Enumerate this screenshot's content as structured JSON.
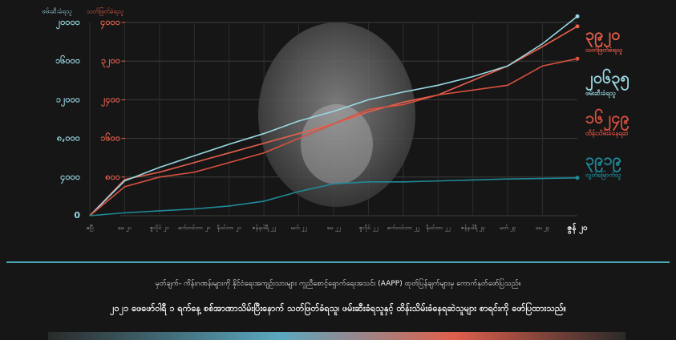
{
  "chart_data": {
    "type": "line",
    "ylabel": "ဖမ်းဆီးခံရသူ",
    "y2label": "သတ်ဖြတ်ခံရသူ",
    "categories": [
      "ဧပြီ",
      "မေ ၂၁",
      "ဇူလိုင် ၂၁",
      "စက်တင်ဘာ ၂၁",
      "နိုဝင်ဘာ ၂၁",
      "ဇန်နဝါရီ ၂၂",
      "မတ် ၂၂",
      "မေ ၂၂",
      "ဇူလိုင် ၂၂",
      "စက်တင်ဘာ ၂၂",
      "နိုဝင်ဘာ ၂၂",
      "ဇန်နဝါရီ ၂၃",
      "မတ် ၂၃",
      "မေ ၂၃",
      "ဇွန် ၂၀"
    ],
    "ylim": [
      0,
      20000
    ],
    "yticks": [
      {
        "value": 0,
        "label": "0"
      },
      {
        "value": 4000,
        "label": "၄၀၀၀"
      },
      {
        "value": 8000,
        "label": "၈,၀၀၀"
      },
      {
        "value": 12000,
        "label": "၁၂၀၀၀"
      },
      {
        "value": 16000,
        "label": "၁၆၀၀၀"
      },
      {
        "value": 20000,
        "label": "၂၀၀၀၀"
      }
    ],
    "y2lim": [
      0,
      4000
    ],
    "y2ticks": [
      {
        "value": 800,
        "label": "၈၀၀"
      },
      {
        "value": 1600,
        "label": "၁၆၀၀"
      },
      {
        "value": 2400,
        "label": "၂၄၀၀"
      },
      {
        "value": 3200,
        "label": "၃၂၀၀"
      },
      {
        "value": 4000,
        "label": "၄၀၀၀"
      }
    ],
    "grid": true,
    "series": [
      {
        "name": "သတ်ဖြတ်ခံရသူ",
        "color": "#e8604c",
        "axis": "y2",
        "values": [
          0,
          750,
          900,
          1100,
          1300,
          1500,
          1700,
          1900,
          2150,
          2350,
          2500,
          2800,
          3100,
          3500,
          3920
        ],
        "value_labels": [
          null,
          null,
          null,
          null,
          null,
          null,
          null,
          null,
          null,
          null,
          null,
          null,
          null,
          null,
          "၃၉၂၀"
        ]
      },
      {
        "name": "ဖမ်းဆီးခံရသူ",
        "color": "#9ad8e4",
        "values": [
          0,
          3600,
          5000,
          6200,
          7400,
          8500,
          9800,
          10800,
          12000,
          12800,
          13500,
          14400,
          15500,
          17800,
          20635
        ],
        "value_labels": [
          null,
          null,
          null,
          null,
          null,
          null,
          null,
          null,
          null,
          null,
          null,
          null,
          null,
          null,
          "၂၀၆၃၅"
        ]
      },
      {
        "name": "ထိန်းသိမ်းခံနေရဆဲ",
        "color": "#d9503f",
        "values": [
          0,
          3000,
          4000,
          4500,
          5500,
          6500,
          8000,
          9500,
          11000,
          11500,
          12500,
          13000,
          13500,
          15500,
          16249
        ],
        "value_labels": [
          null,
          null,
          null,
          null,
          null,
          null,
          null,
          null,
          null,
          null,
          null,
          null,
          null,
          null,
          "၁၆၂၄၉"
        ]
      },
      {
        "name": "လွတ်မြောက်သူ",
        "color": "#1f8a99",
        "values": [
          0,
          300,
          500,
          700,
          1000,
          1500,
          2500,
          3300,
          3500,
          3500,
          3600,
          3700,
          3800,
          3850,
          3919
        ],
        "value_labels": [
          null,
          null,
          null,
          null,
          null,
          null,
          null,
          null,
          null,
          null,
          null,
          null,
          null,
          null,
          "၃၉၁၉"
        ]
      }
    ]
  },
  "footer": {
    "source": "မှတ်ချက်- ကိန်းဂဏန်းများကို နိုင်ငံရေးအကျဉ်းသားများ ကူညီစောင့်ရှောက်ရေးအသင်း (AAPP) ထုတ်ပြန်ချက်များမှ ကောက်နုတ်ဖော်ပြသည်။",
    "note": "၂၀၂၁ ဖေဖော်ဝါရီ ၁ ရက်နေ့ စစ်အာဏာသိမ်းပြီးနောက် သတ်ဖြတ်ခံရသူ၊ ဖမ်းဆီးခံရသူနှင့် ထိန်းသိမ်းခံနေရဆဲသူများ စာရင်းကို ဖော်ပြထားသည်။"
  }
}
